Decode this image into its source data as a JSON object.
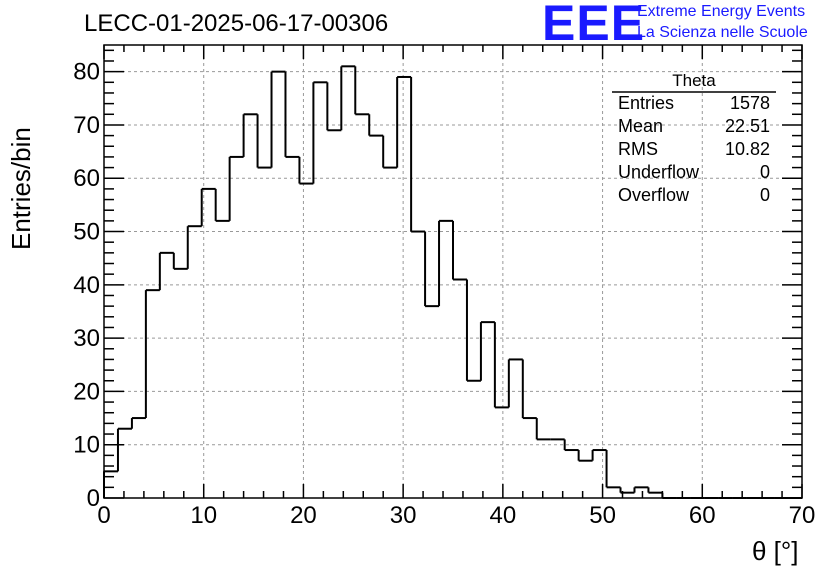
{
  "header": {
    "title": "LECC-01-2025-06-17-00306",
    "logo_text": "EEE",
    "logo_line1": "Extreme Energy Events",
    "logo_line2": "La Scienza nelle Scuole"
  },
  "stats_box": {
    "title": "Theta",
    "rows": [
      {
        "key": "Entries",
        "value": "1578"
      },
      {
        "key": "Mean",
        "value": "22.51"
      },
      {
        "key": "RMS",
        "value": "10.82"
      },
      {
        "key": "Underflow",
        "value": "0"
      },
      {
        "key": "Overflow",
        "value": "0"
      }
    ]
  },
  "colors": {
    "brand": "#1a1aff",
    "line": "#000000",
    "grid": "#999999"
  },
  "chart_data": {
    "type": "histogram",
    "title": "LECC-01-2025-06-17-00306",
    "xlabel": "θ [°]",
    "ylabel": "Entries/bin",
    "xlim": [
      0,
      70
    ],
    "ylim": [
      0,
      85
    ],
    "grid": true,
    "legend": "top-right",
    "bin_width": 1.4,
    "bin_edges_start": 0,
    "values": [
      5,
      13,
      15,
      39,
      46,
      43,
      51,
      58,
      52,
      64,
      72,
      62,
      80,
      64,
      59,
      78,
      69,
      81,
      72,
      68,
      62,
      79,
      50,
      36,
      52,
      41,
      22,
      33,
      17,
      26,
      15,
      11,
      11,
      9,
      7,
      9,
      2,
      1,
      2,
      1,
      0,
      0,
      0,
      0,
      0,
      0,
      0,
      0,
      0,
      0
    ],
    "x_ticks": [
      0,
      10,
      20,
      30,
      40,
      50,
      60,
      70
    ],
    "y_ticks": [
      0,
      10,
      20,
      30,
      40,
      50,
      60,
      70,
      80
    ]
  }
}
